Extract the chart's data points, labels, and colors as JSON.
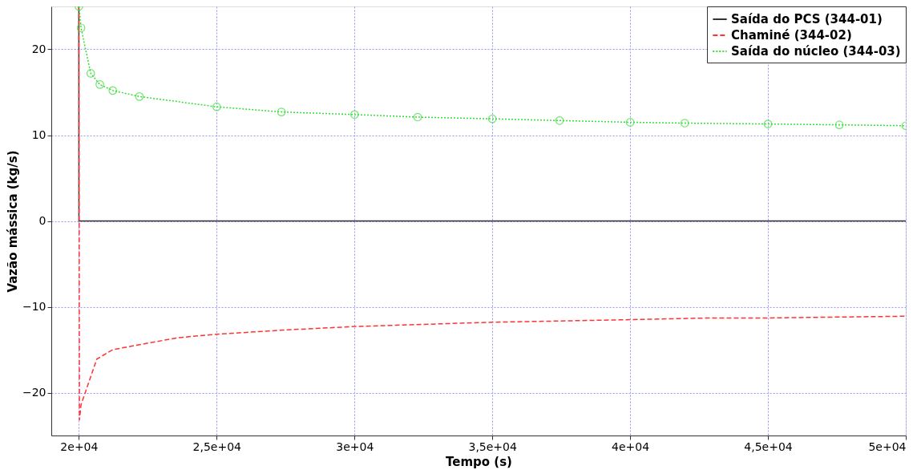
{
  "chart_data": {
    "type": "line",
    "xlabel": "Tempo (s)",
    "ylabel": "Vazão mássica (kg/s)",
    "xlim": [
      19000,
      50000
    ],
    "ylim": [
      -25,
      25
    ],
    "xticks": [
      {
        "value": 20000,
        "label": "2e+04"
      },
      {
        "value": 25000,
        "label": "2,5e+04"
      },
      {
        "value": 30000,
        "label": "3e+04"
      },
      {
        "value": 35000,
        "label": "3,5e+04"
      },
      {
        "value": 40000,
        "label": "4e+04"
      },
      {
        "value": 45000,
        "label": "4,5e+04"
      },
      {
        "value": 50000,
        "label": "5e+04"
      }
    ],
    "yticks": [
      -20,
      -10,
      0,
      10,
      20
    ],
    "grid": true,
    "legend": "top right",
    "series": [
      {
        "name": "Saída do PCS (344-01)",
        "color": "#333333",
        "line_style": "solid",
        "marker": "none",
        "x": [
          20000,
          20001,
          50000
        ],
        "values": [
          25,
          0,
          0
        ]
      },
      {
        "name": "Chaminé (344-02)",
        "color": "#ff3333",
        "line_style": "dashed",
        "marker": "none",
        "x": [
          20000,
          20020,
          20080,
          20650,
          21230,
          22400,
          23600,
          25000,
          27500,
          30000,
          35000,
          40000,
          43000,
          45000,
          50000
        ],
        "values": [
          25,
          -23.2,
          -21.4,
          -16.1,
          -15.0,
          -14.3,
          -13.6,
          -13.2,
          -12.7,
          -12.3,
          -11.8,
          -11.5,
          -11.3,
          -11.3,
          -11.1
        ]
      },
      {
        "name": "Saída do núcleo (344-03)",
        "color": "#33dd33",
        "line_style": "dotted",
        "marker": "circle",
        "x": [
          20000,
          20080,
          20430,
          20760,
          21230,
          22195,
          25000,
          27350,
          30000,
          32290,
          35000,
          37440,
          40000,
          41980,
          45000,
          47590,
          50000
        ],
        "values": [
          25,
          22.5,
          17.2,
          15.9,
          15.2,
          14.5,
          13.3,
          12.7,
          12.4,
          12.1,
          11.9,
          11.7,
          11.5,
          11.4,
          11.3,
          11.2,
          11.1
        ]
      }
    ]
  }
}
